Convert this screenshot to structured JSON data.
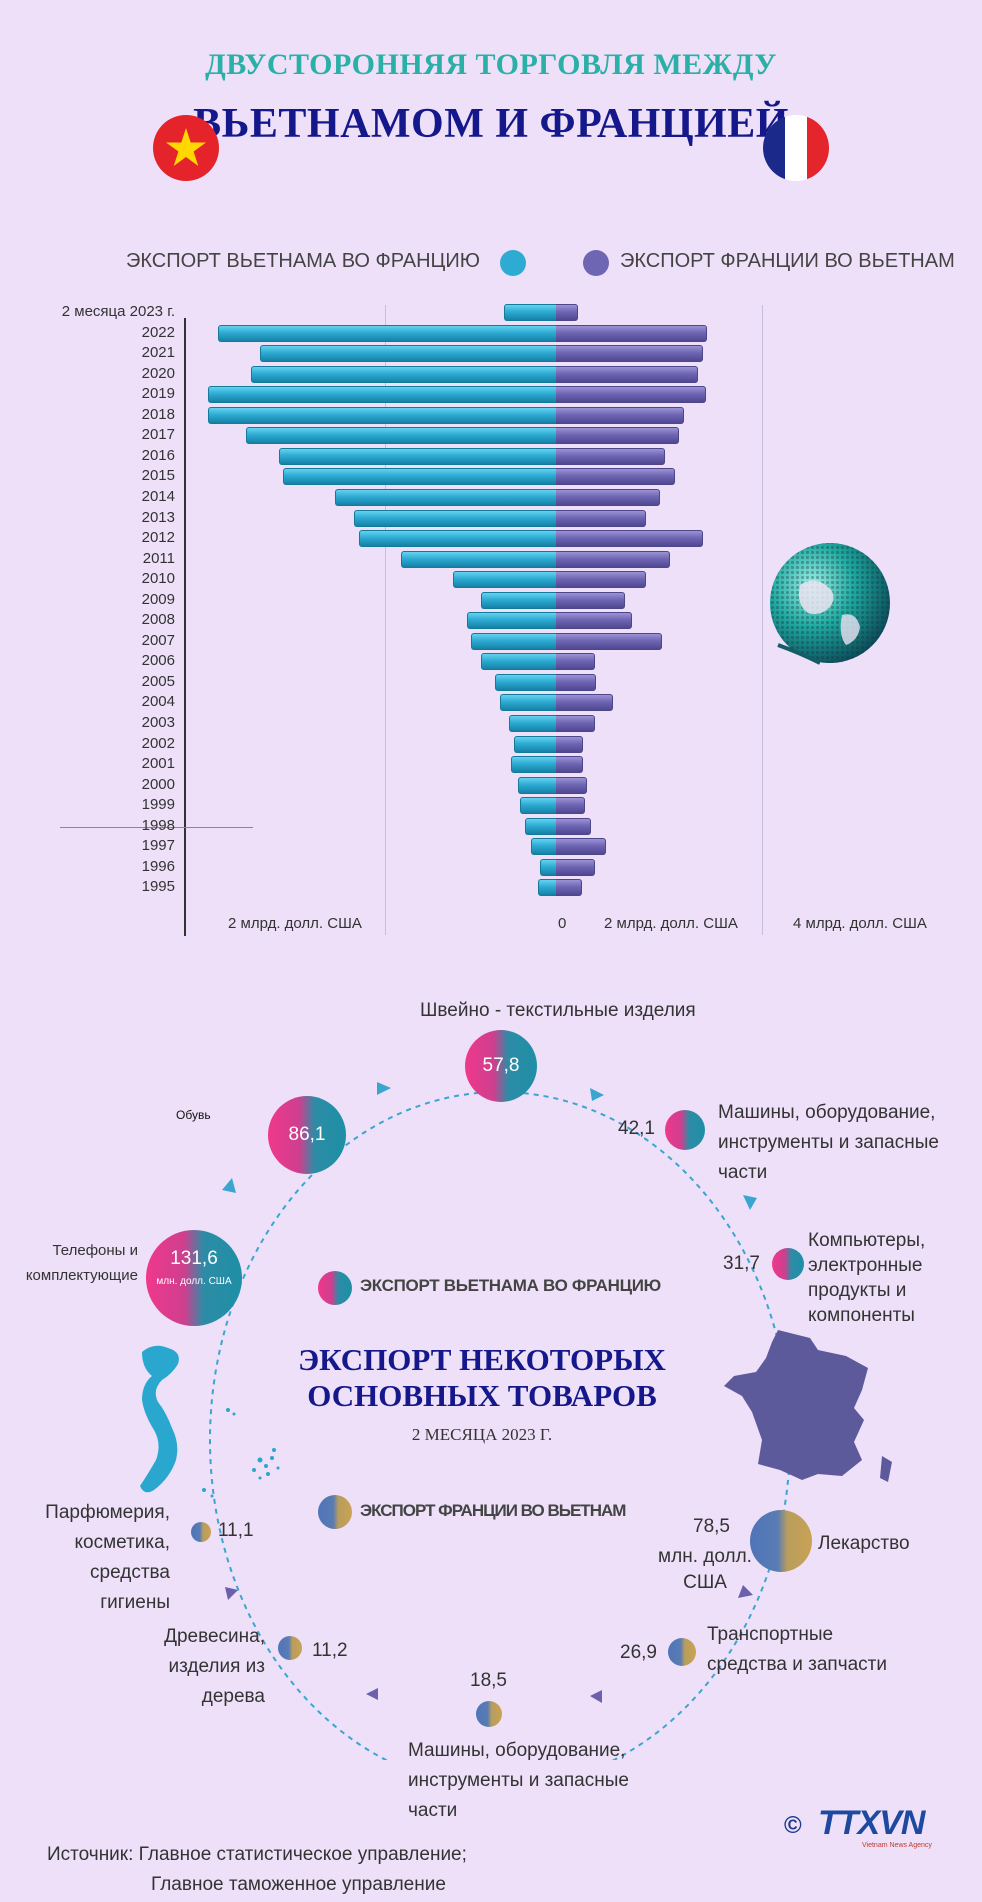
{
  "header": {
    "title_line1": "ДВУСТОРОННЯЯ ТОРГОВЛЯ МЕЖДУ",
    "title_line2": "ВЬЕТНАМОМ И ФРАНЦИЕЙ"
  },
  "chart_data": {
    "type": "bar",
    "orientation": "horizontal-diverging",
    "legend": {
      "vn": "ЭКСПОРТ ВЬЕТНАМА ВО ФРАНЦИЮ",
      "fr": "ЭКСПОРТ ФРАНЦИИ ВО ВЬЕТНАМ"
    },
    "categories": [
      "2 месяца 2023 г.",
      "2022",
      "2021",
      "2020",
      "2019",
      "2018",
      "2017",
      "2016",
      "2015",
      "2014",
      "2013",
      "2012",
      "2011",
      "2010",
      "2009",
      "2008",
      "2007",
      "2006",
      "2005",
      "2004",
      "2003",
      "2002",
      "2001",
      "2000",
      "1999",
      "1998",
      "1997",
      "1996",
      "1995"
    ],
    "series": [
      {
        "name": "ЭКСПОРТ ВЬЕТНАМА ВО ФРАНЦИЮ",
        "color": "#2eabd3",
        "values": [
          0.55,
          3.6,
          3.15,
          3.25,
          3.7,
          3.7,
          3.3,
          2.95,
          2.9,
          2.35,
          2.15,
          2.1,
          1.65,
          1.1,
          0.8,
          0.95,
          0.9,
          0.8,
          0.65,
          0.6,
          0.5,
          0.45,
          0.48,
          0.4,
          0.38,
          0.33,
          0.27,
          0.17,
          0.19
        ]
      },
      {
        "name": "ЭКСПОРТ ФРАНЦИИ ВО ВЬЕТНАМ",
        "color": "#6f66b3",
        "values": [
          0.22,
          1.6,
          1.55,
          1.5,
          1.58,
          1.35,
          1.3,
          1.15,
          1.25,
          1.1,
          0.95,
          1.55,
          1.2,
          0.95,
          0.72,
          0.8,
          1.12,
          0.4,
          0.42,
          0.6,
          0.4,
          0.28,
          0.28,
          0.32,
          0.3,
          0.36,
          0.52,
          0.4,
          0.27
        ]
      }
    ],
    "axis_labels": [
      "2 млрд. долл. США",
      "0",
      "2 млрд. долл. США",
      "4 млрд. долл. США"
    ],
    "xlim": [
      -4,
      4
    ]
  },
  "products": {
    "center_title_line1": "ЭКСПОРТ НЕКОТОРЫХ",
    "center_title_line2": "ОСНОВНЫХ ТОВАРОВ",
    "center_subtitle": "2 МЕСЯЦА 2023 Г.",
    "legend_vn": "ЭКСПОРТ ВЬЕТНАМА ВО ФРАНЦИЮ",
    "legend_fr": "ЭКСПОРТ ФРАНЦИИ ВО ВЬЕТНАМ",
    "vn_items": [
      {
        "label": "Швейно - текстильные изделия",
        "value": "57,8"
      },
      {
        "label": "Машины, оборудование, инструменты и запасные части",
        "value": "42,1"
      },
      {
        "label": "Компьютеры, электронные продукты и компоненты",
        "value": "31,7"
      },
      {
        "label": "Обувь",
        "value": "86,1"
      },
      {
        "label": "Телефоны и комплектующие",
        "value": "131,6",
        "unit": "млн. долл. США"
      }
    ],
    "fr_items": [
      {
        "label": "Лекарство",
        "value": "78,5",
        "unit": "млн. долл. США"
      },
      {
        "label": "Транспортные средства и запчасти",
        "value": "26,9"
      },
      {
        "label": "Машины, оборудование, инструменты и запасные части",
        "value": "18,5"
      },
      {
        "label": "Древесина, изделия из дерева",
        "value": "11,2"
      },
      {
        "label": "Парфюмерия, косметика, средства гигиены",
        "value": "11,1"
      }
    ]
  },
  "footer": {
    "source_line1": "Источник: Главное статистическое управление;",
    "source_line2": "Главное таможенное управление",
    "logo_copyright": "©",
    "logo_text": "TTXVN",
    "logo_sub": "Vietnam News Agency"
  },
  "colors": {
    "background": "#ede0f8",
    "title_teal": "#2ab0a7",
    "title_navy": "#14188a",
    "vn_bar": "#2eabd3",
    "fr_bar": "#6f66b3"
  }
}
